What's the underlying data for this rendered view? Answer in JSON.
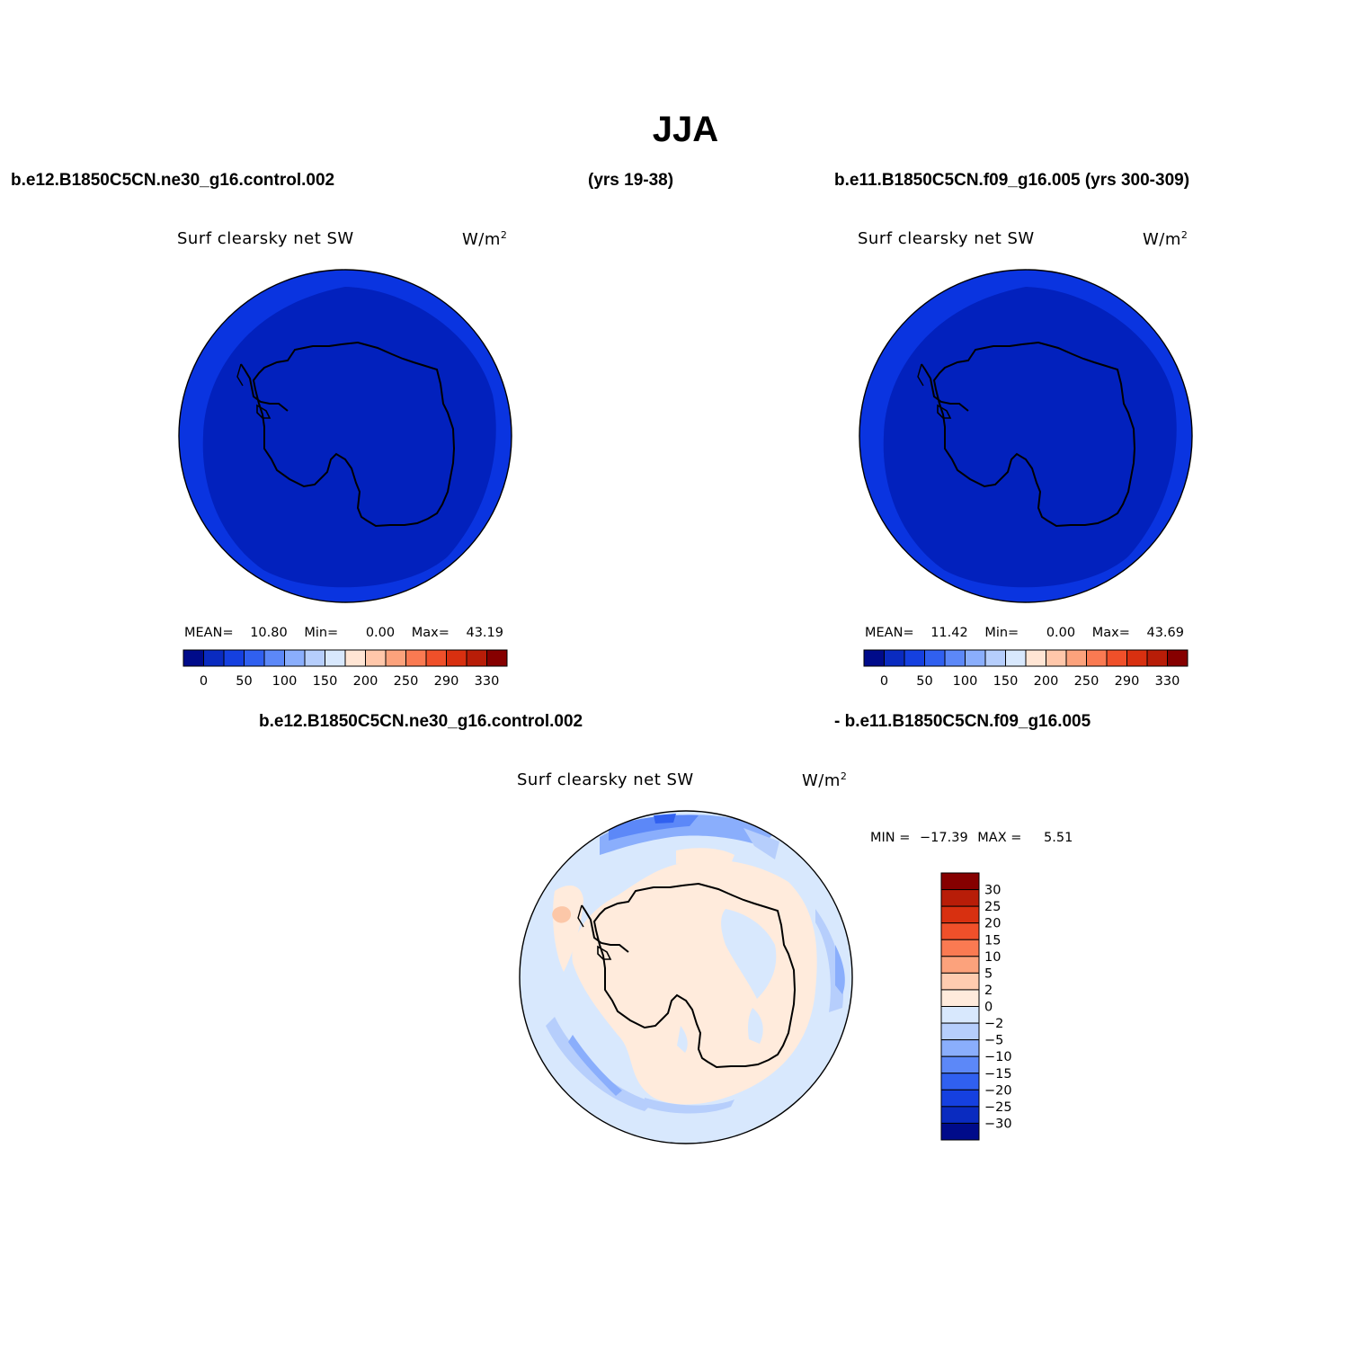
{
  "main_title": "JJA",
  "header": {
    "case1": "b.e12.B1850C5CN.ne30_g16.control.002",
    "years1": "(yrs 19-38)",
    "case2": "b.e11.B1850C5CN.f09_g16.005 (yrs 300-309)"
  },
  "diff_header": {
    "left": "b.e12.B1850C5CN.ne30_g16.control.002",
    "right": "- b.e11.B1850C5CN.f09_g16.005"
  },
  "variable": "Surf clearsky net SW",
  "units": "W/m",
  "units_exp": "2",
  "panels": [
    {
      "mean_label": "MEAN=",
      "mean": "10.80",
      "min_label": "Min=",
      "min": "0.00",
      "max_label": "Max=",
      "max": "43.19"
    },
    {
      "mean_label": "MEAN=",
      "mean": "11.42",
      "min_label": "Min=",
      "min": "0.00",
      "max_label": "Max=",
      "max": "43.69"
    }
  ],
  "diff_panel": {
    "min_label": "MIN =",
    "min": "−17.39",
    "max_label": "MAX =",
    "max": "5.51"
  },
  "colorbar": {
    "colors": [
      "#000b8a",
      "#0a2bc0",
      "#1540e0",
      "#3060f0",
      "#5c88f8",
      "#8aaefc",
      "#b6cefc",
      "#d8e8fd",
      "#ffe5d4",
      "#ffc7aa",
      "#fca27c",
      "#fa7a52",
      "#f0502a",
      "#d83010",
      "#b81d08",
      "#860000"
    ],
    "labels": [
      "0",
      "50",
      "100",
      "150",
      "200",
      "250",
      "290",
      "330"
    ]
  },
  "diff_colorbar": {
    "colors": [
      "#000b8a",
      "#0a2bc0",
      "#1540e0",
      "#3060f0",
      "#5c88f8",
      "#8aaefc",
      "#b6cefc",
      "#d8e8fd",
      "#ffebdc",
      "#ffccb0",
      "#fca27c",
      "#fa7a52",
      "#f0502a",
      "#d83010",
      "#b81d08",
      "#860000"
    ],
    "labels": [
      "30",
      "25",
      "20",
      "15",
      "10",
      "5",
      "2",
      "0",
      "−2",
      "−5",
      "−10",
      "−15",
      "−20",
      "−25",
      "−30"
    ]
  },
  "map_colors": {
    "deep": "#0221bd",
    "outer": "#0a34e0",
    "diff_ocean": "#d8e8fd",
    "diff_pos": "#ffebdc",
    "diff_neg2": "#b6cefc",
    "diff_neg3": "#8aaefc",
    "diff_neg4": "#5c88f8",
    "diff_neg5": "#3060f0",
    "diff_hot": "#fcc7a8"
  }
}
